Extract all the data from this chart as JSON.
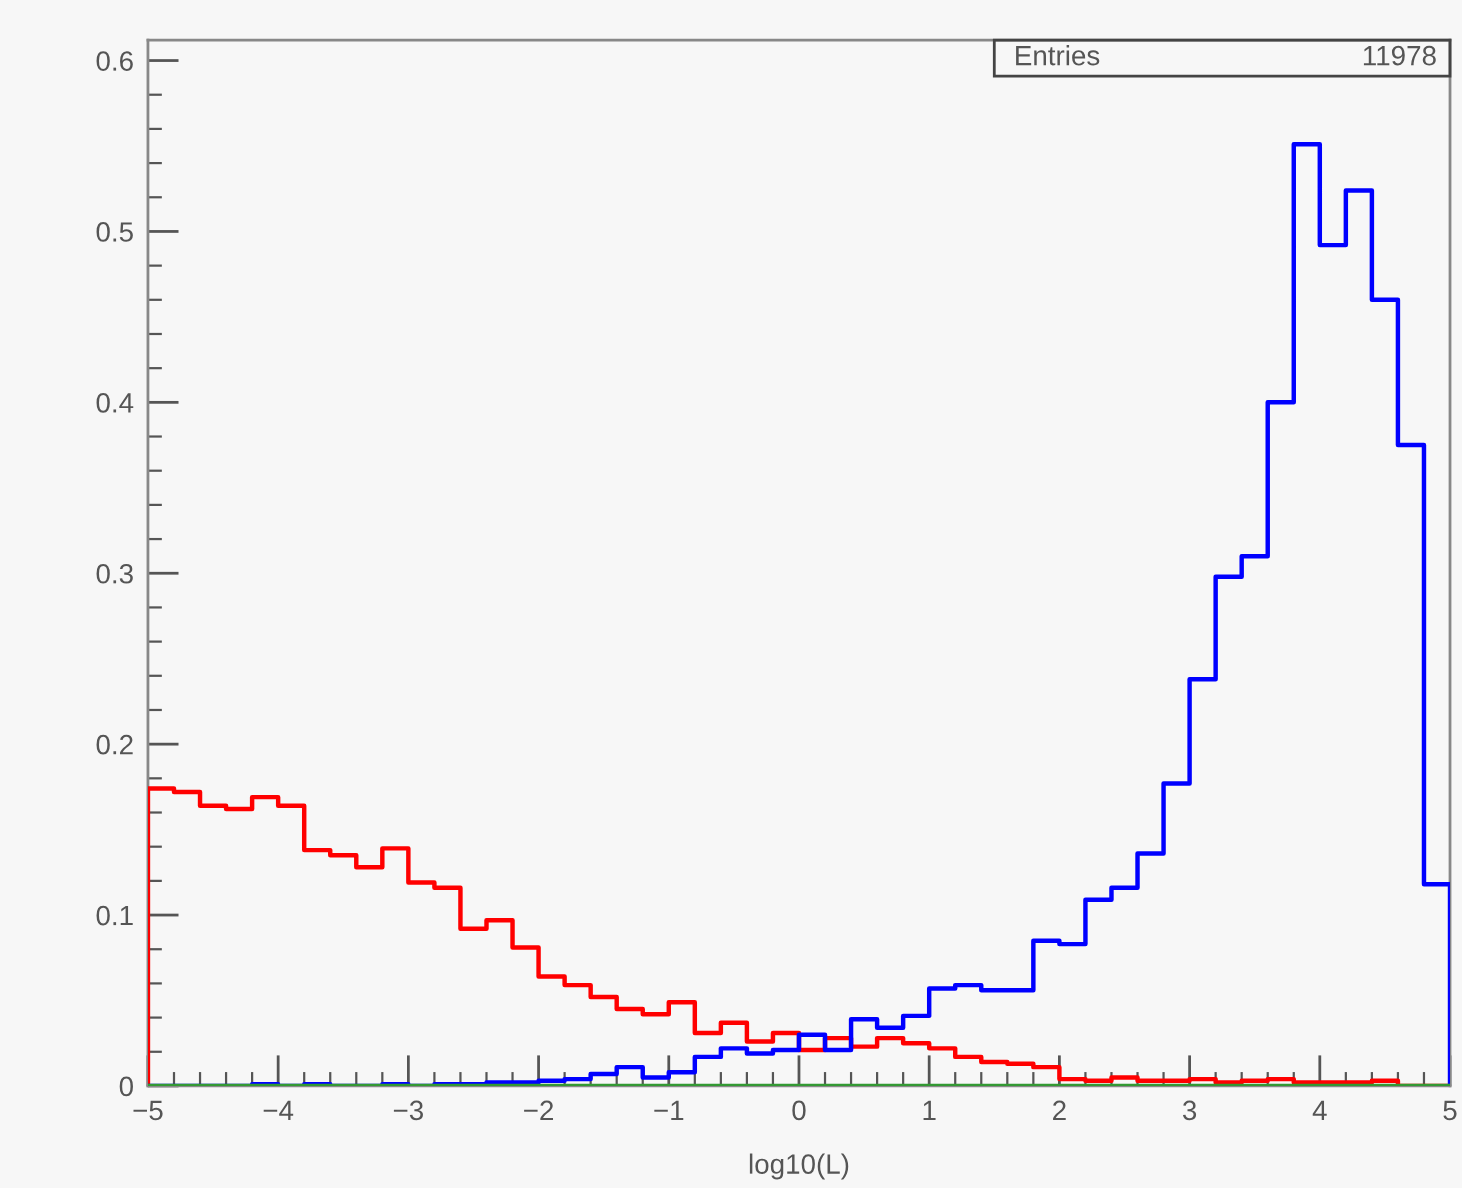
{
  "chart_data": {
    "type": "histogram",
    "xlabel": "log10(L)",
    "bins": [
      -5,
      -4.8,
      -4.6,
      -4.4,
      -4.2,
      -4,
      -3.8,
      -3.6,
      -3.4,
      -3.2,
      -3,
      -2.8,
      -2.6,
      -2.4,
      -2.2,
      -2,
      -1.8,
      -1.6,
      -1.4,
      -1.2,
      -1,
      -0.8,
      -0.6,
      -0.4,
      -0.2,
      0,
      0.2,
      0.4,
      0.6,
      0.8,
      1,
      1.2,
      1.4,
      1.6,
      1.8,
      2,
      2.2,
      2.4,
      2.6,
      2.8,
      3,
      3.2,
      3.4,
      3.6,
      3.8,
      4,
      4.2,
      4.4,
      4.6,
      4.8,
      5
    ],
    "series": [
      {
        "color": "#ff0000",
        "values": [
          0.174,
          0.172,
          0.164,
          0.162,
          0.169,
          0.164,
          0.138,
          0.135,
          0.128,
          0.139,
          0.119,
          0.116,
          0.092,
          0.097,
          0.081,
          0.064,
          0.059,
          0.052,
          0.045,
          0.042,
          0.049,
          0.031,
          0.037,
          0.026,
          0.031,
          0.021,
          0.028,
          0.023,
          0.028,
          0.025,
          0.022,
          0.017,
          0.014,
          0.013,
          0.011,
          0.004,
          0.003,
          0.005,
          0.003,
          0.003,
          0.004,
          0.002,
          0.003,
          0.004,
          0.002,
          0.002,
          0.002,
          0.003,
          0,
          0
        ]
      },
      {
        "color": "#0000ff",
        "values": [
          0,
          0,
          0,
          0,
          0.001,
          0,
          0.001,
          0,
          0,
          0.001,
          0,
          0.001,
          0.001,
          0.002,
          0.002,
          0.003,
          0.004,
          0.007,
          0.011,
          0.005,
          0.008,
          0.017,
          0.022,
          0.019,
          0.021,
          0.03,
          0.021,
          0.039,
          0.034,
          0.041,
          0.057,
          0.059,
          0.056,
          0.056,
          0.085,
          0.083,
          0.109,
          0.116,
          0.136,
          0.177,
          0.238,
          0.298,
          0.31,
          0.4,
          0.551,
          0.492,
          0.524,
          0.46,
          0.375,
          0.118
        ]
      },
      {
        "color": "#339933",
        "values": [
          0,
          0,
          0,
          0,
          0,
          0,
          0,
          0,
          0,
          0,
          0,
          0,
          0,
          0,
          0,
          0,
          0,
          0,
          0,
          0,
          0,
          0,
          0,
          0,
          0,
          0,
          0,
          0,
          0,
          0,
          0,
          0,
          0,
          0,
          0,
          0,
          0,
          0,
          0,
          0,
          0,
          0,
          0,
          0,
          0,
          0,
          0,
          0,
          0,
          0
        ]
      }
    ],
    "xlim": [
      -5,
      5
    ],
    "ylim": [
      0,
      0.612
    ],
    "xticks": [
      {
        "value": -5,
        "label": "−5"
      },
      {
        "value": -4,
        "label": "−4"
      },
      {
        "value": -3,
        "label": "−3"
      },
      {
        "value": -2,
        "label": "−2"
      },
      {
        "value": -1,
        "label": "−1"
      },
      0,
      1,
      2,
      3,
      4,
      5
    ],
    "yticks": [
      0,
      0.1,
      0.2,
      0.3,
      0.4,
      0.5,
      0.6
    ],
    "annotations": [
      "Entries",
      "11978"
    ]
  }
}
